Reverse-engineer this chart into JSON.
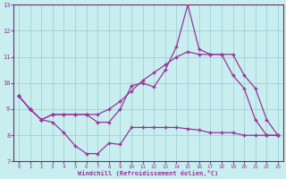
{
  "xlabel": "Windchill (Refroidissement éolien,°C)",
  "bg_color": "#c8eef0",
  "line_color": "#993399",
  "grid_color": "#99cccc",
  "axis_color": "#663366",
  "ylim": [
    7,
    13
  ],
  "xlim": [
    -0.5,
    23.5
  ],
  "yticks": [
    7,
    8,
    9,
    10,
    11,
    12,
    13
  ],
  "xticks": [
    0,
    1,
    2,
    3,
    4,
    5,
    6,
    7,
    8,
    9,
    10,
    11,
    12,
    13,
    14,
    15,
    16,
    17,
    18,
    19,
    20,
    21,
    22,
    23
  ],
  "line1_x": [
    0,
    1,
    2,
    3,
    4,
    5,
    6,
    7,
    8,
    9,
    10,
    11,
    12,
    13,
    14,
    15,
    16,
    17,
    18,
    19,
    20,
    21,
    22,
    23
  ],
  "line1_y": [
    9.5,
    9.0,
    8.6,
    8.5,
    8.1,
    7.6,
    7.3,
    7.3,
    7.7,
    7.65,
    8.3,
    8.3,
    8.3,
    8.3,
    8.3,
    8.25,
    8.2,
    8.1,
    8.1,
    8.1,
    8.0,
    8.0,
    8.0,
    8.0
  ],
  "line2_x": [
    0,
    1,
    2,
    3,
    4,
    5,
    6,
    7,
    8,
    9,
    10,
    11,
    12,
    13,
    14,
    15,
    16,
    17,
    18,
    19,
    20,
    21,
    22,
    23
  ],
  "line2_y": [
    9.5,
    9.0,
    8.6,
    8.8,
    8.8,
    8.8,
    8.8,
    8.5,
    8.5,
    9.0,
    9.9,
    10.0,
    9.85,
    10.5,
    11.4,
    13.0,
    11.3,
    11.1,
    11.1,
    10.3,
    9.8,
    8.6,
    8.0,
    8.0
  ],
  "line3_x": [
    0,
    1,
    2,
    3,
    4,
    5,
    6,
    7,
    8,
    9,
    10,
    11,
    12,
    13,
    14,
    15,
    16,
    17,
    18,
    19,
    20,
    21,
    22,
    23
  ],
  "line3_y": [
    9.5,
    9.0,
    8.6,
    8.8,
    8.8,
    8.8,
    8.8,
    8.8,
    9.0,
    9.3,
    9.7,
    10.1,
    10.4,
    10.7,
    11.0,
    11.2,
    11.1,
    11.1,
    11.1,
    11.1,
    10.3,
    9.8,
    8.6,
    8.0
  ]
}
